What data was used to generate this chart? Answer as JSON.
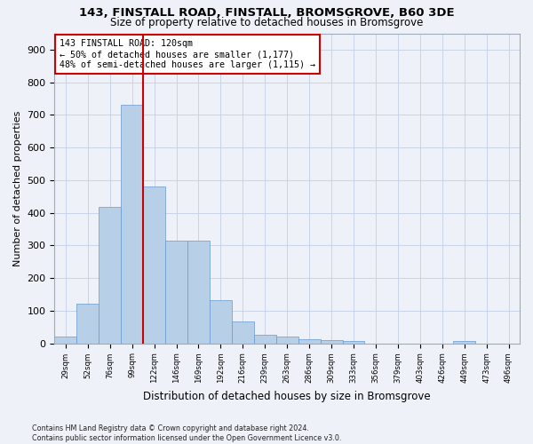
{
  "title1": "143, FINSTALL ROAD, FINSTALL, BROMSGROVE, B60 3DE",
  "title2": "Size of property relative to detached houses in Bromsgrove",
  "xlabel": "Distribution of detached houses by size in Bromsgrove",
  "ylabel": "Number of detached properties",
  "bar_color": "#b8cfe8",
  "bar_edge_color": "#6699cc",
  "grid_color": "#c8d4e8",
  "background_color": "#eef2f8",
  "annotation_line_color": "#cc0000",
  "annotation_box_color": "#cc0000",
  "annotation_text": "143 FINSTALL ROAD: 120sqm\n← 50% of detached houses are smaller (1,177)\n48% of semi-detached houses are larger (1,115) →",
  "categories": [
    "29sqm",
    "52sqm",
    "76sqm",
    "99sqm",
    "122sqm",
    "146sqm",
    "169sqm",
    "192sqm",
    "216sqm",
    "239sqm",
    "263sqm",
    "286sqm",
    "309sqm",
    "333sqm",
    "356sqm",
    "379sqm",
    "403sqm",
    "426sqm",
    "449sqm",
    "473sqm",
    "496sqm"
  ],
  "values": [
    20,
    122,
    417,
    730,
    480,
    315,
    315,
    133,
    68,
    25,
    20,
    12,
    10,
    6,
    0,
    0,
    0,
    0,
    8,
    0,
    0
  ],
  "ylim": [
    0,
    950
  ],
  "yticks": [
    0,
    100,
    200,
    300,
    400,
    500,
    600,
    700,
    800,
    900
  ],
  "red_line_x": 3.5,
  "footer": "Contains HM Land Registry data © Crown copyright and database right 2024.\nContains public sector information licensed under the Open Government Licence v3.0."
}
